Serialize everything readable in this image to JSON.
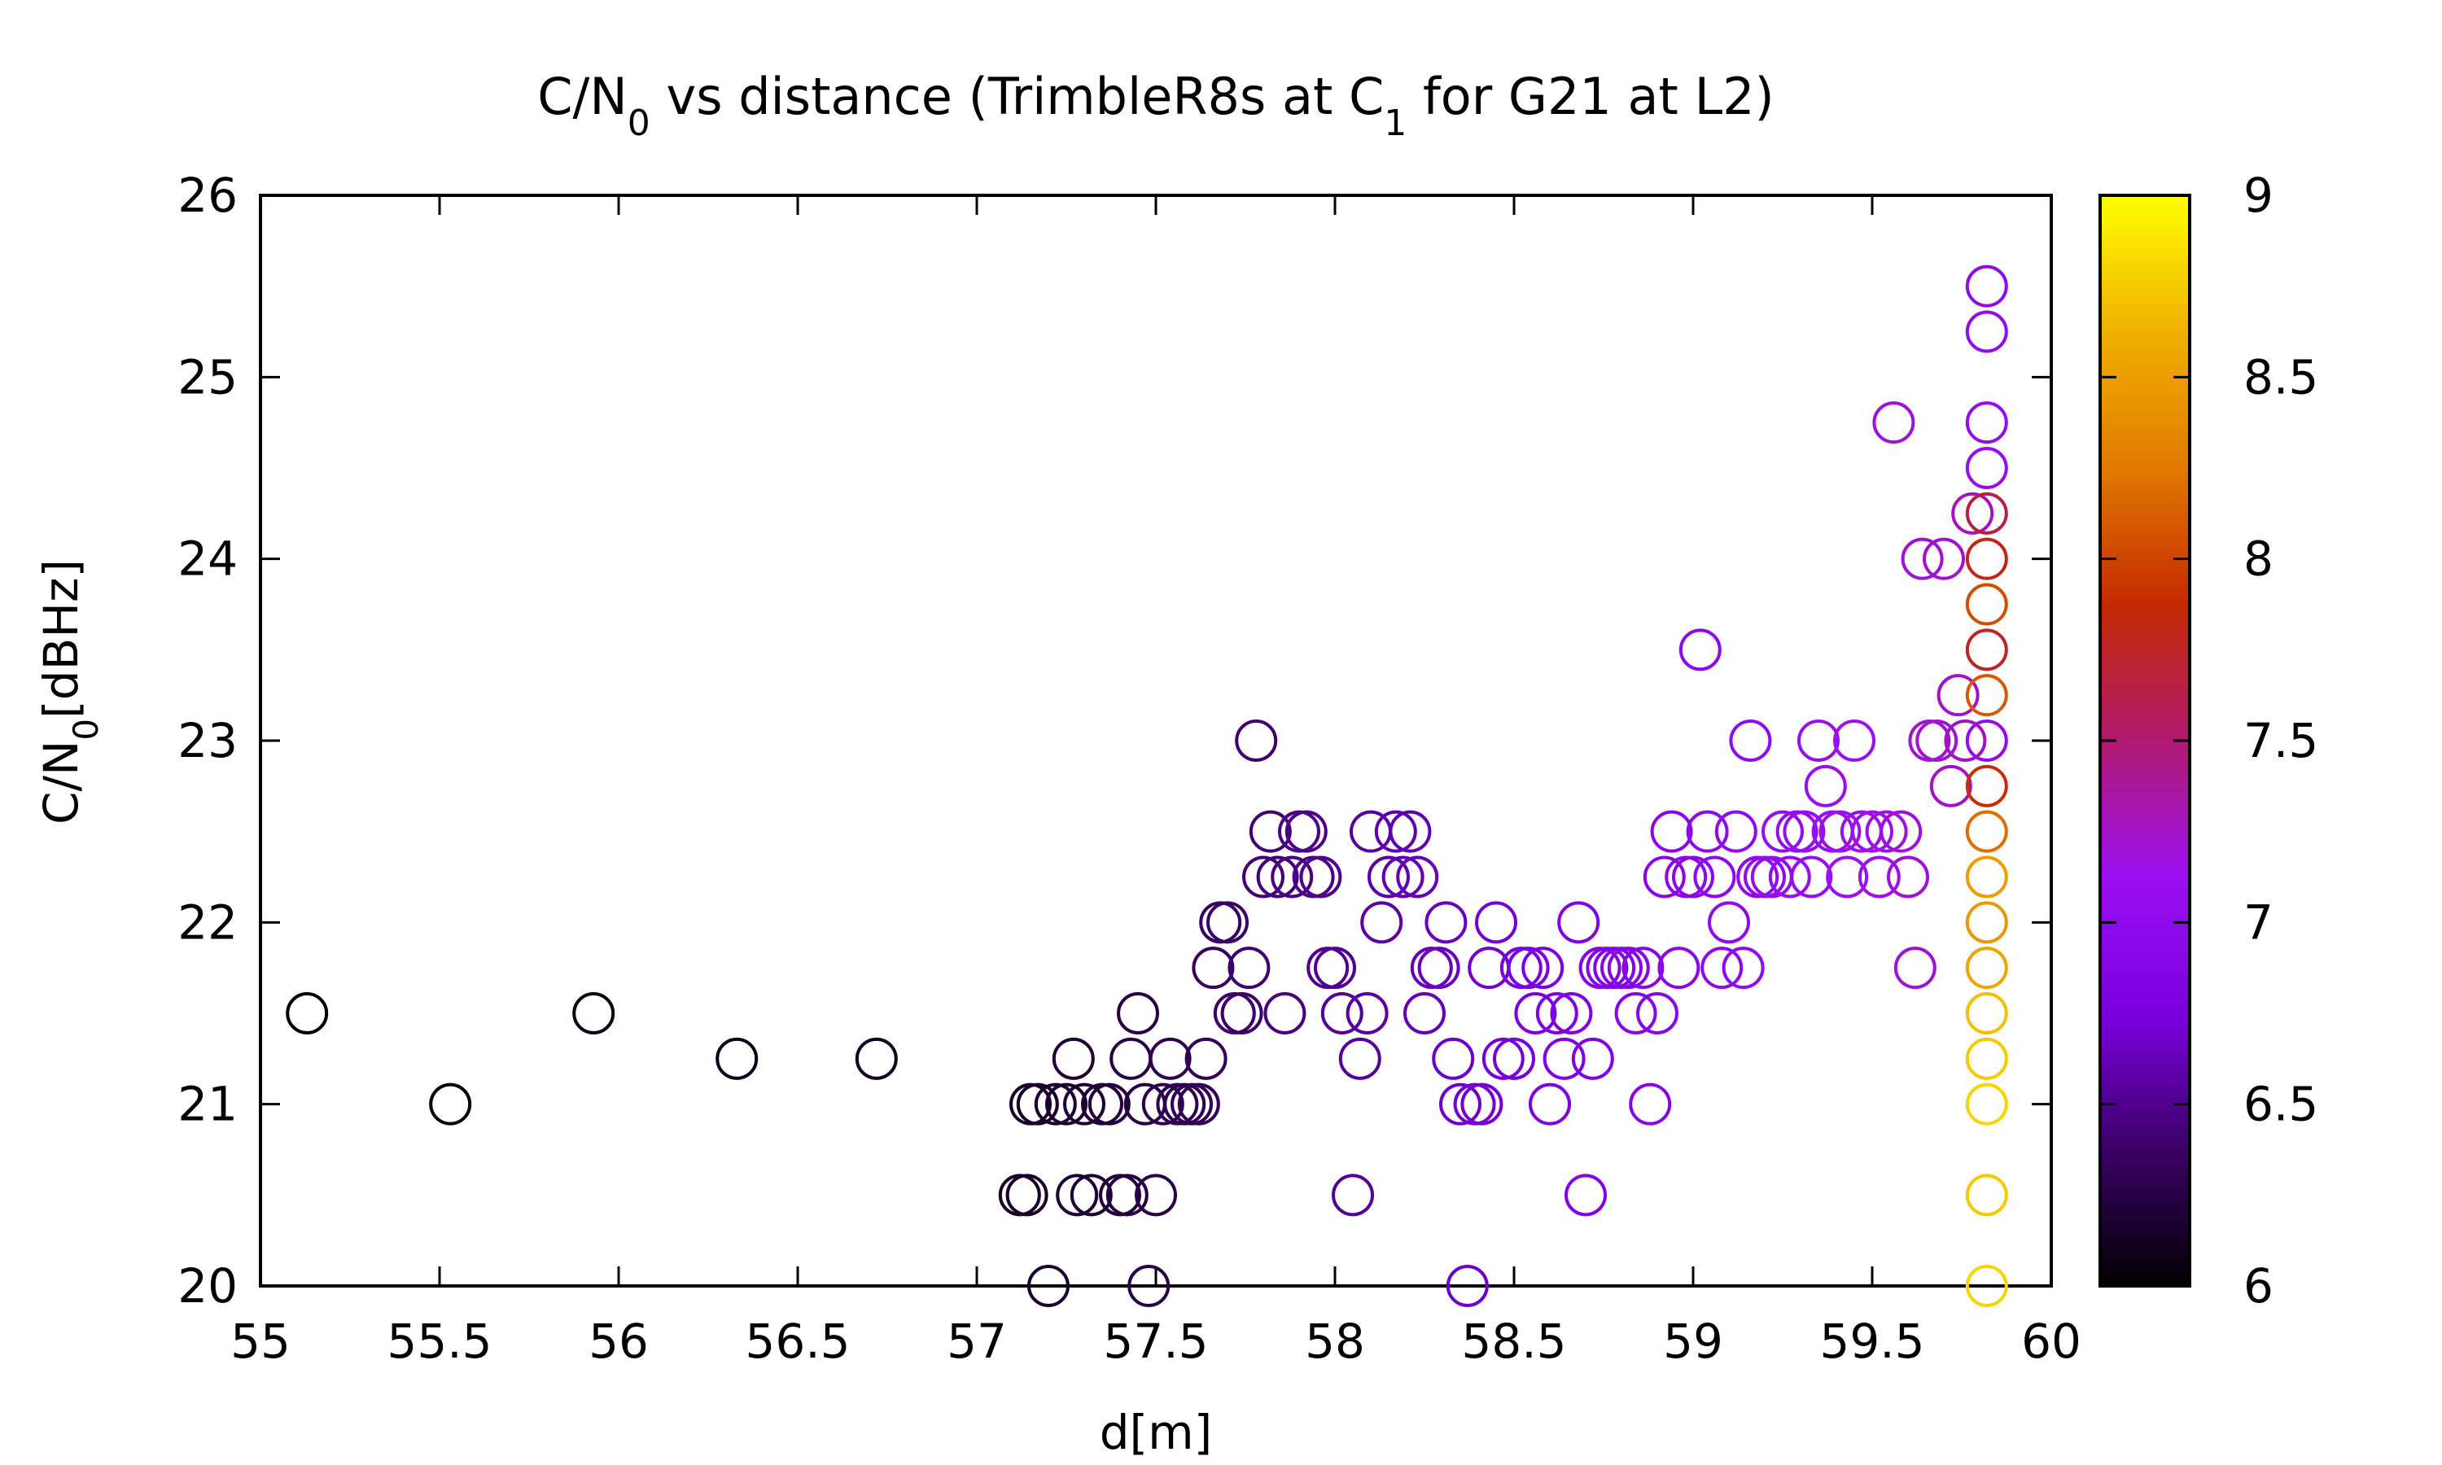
{
  "chart_data": {
    "type": "scatter",
    "title_parts": {
      "a": "C/N",
      "a_sub": "0",
      "b": " vs distance (TrimbleR8s at C",
      "b_sub": "1",
      "c": " for G21 at L2)"
    },
    "ylabel_parts": {
      "a": "C/N",
      "a_sub": "0",
      "b": "[dBHz]"
    },
    "xlabel": "d[m]",
    "xlim": [
      55,
      60
    ],
    "ylim": [
      20,
      26
    ],
    "xticks": [
      "55",
      "55.5",
      "56",
      "56.5",
      "57",
      "57.5",
      "58",
      "58.5",
      "59",
      "59.5",
      "60"
    ],
    "yticks": [
      "20",
      "21",
      "22",
      "23",
      "24",
      "25",
      "26"
    ],
    "colorbar": {
      "range": [
        6,
        9
      ],
      "ticks": [
        "6",
        "6.5",
        "7",
        "7.5",
        "8",
        "8.5",
        "9"
      ],
      "palette": [
        "#000000",
        "#3b0066",
        "#7a00e0",
        "#9a10f0",
        "#b01a70",
        "#c42a00",
        "#e07a00",
        "#f0b000",
        "#ffff00"
      ]
    },
    "grid": false,
    "marker": "open-circle",
    "points": [
      [
        55.13,
        21.5,
        6.0
      ],
      [
        55.53,
        21.0,
        6.05
      ],
      [
        55.93,
        21.5,
        6.08
      ],
      [
        56.33,
        21.25,
        6.1
      ],
      [
        56.72,
        21.25,
        6.12
      ],
      [
        57.12,
        20.5,
        6.15
      ],
      [
        57.14,
        20.5,
        6.15
      ],
      [
        57.15,
        21.0,
        6.15
      ],
      [
        57.17,
        21.0,
        6.15
      ],
      [
        57.2,
        20.0,
        6.17
      ],
      [
        57.22,
        21.0,
        6.17
      ],
      [
        57.25,
        21.0,
        6.18
      ],
      [
        57.27,
        21.25,
        6.2
      ],
      [
        57.28,
        20.5,
        6.2
      ],
      [
        57.3,
        21.0,
        6.2
      ],
      [
        57.32,
        20.5,
        6.2
      ],
      [
        57.35,
        21.0,
        6.22
      ],
      [
        57.37,
        21.0,
        6.22
      ],
      [
        57.4,
        20.5,
        6.22
      ],
      [
        57.42,
        20.5,
        6.23
      ],
      [
        57.43,
        21.25,
        6.25
      ],
      [
        57.45,
        21.5,
        6.25
      ],
      [
        57.47,
        21.0,
        6.25
      ],
      [
        57.48,
        20.0,
        6.27
      ],
      [
        57.5,
        20.5,
        6.27
      ],
      [
        57.52,
        21.0,
        6.28
      ],
      [
        57.54,
        21.25,
        6.3
      ],
      [
        57.56,
        21.0,
        6.3
      ],
      [
        57.58,
        21.0,
        6.3
      ],
      [
        57.6,
        21.0,
        6.32
      ],
      [
        57.62,
        21.0,
        6.32
      ],
      [
        57.64,
        21.25,
        6.33
      ],
      [
        57.66,
        21.75,
        6.35
      ],
      [
        57.68,
        22.0,
        6.35
      ],
      [
        57.7,
        22.0,
        6.37
      ],
      [
        57.72,
        21.5,
        6.38
      ],
      [
        57.74,
        21.5,
        6.38
      ],
      [
        57.76,
        21.75,
        6.4
      ],
      [
        57.78,
        23.0,
        6.4
      ],
      [
        57.8,
        22.25,
        6.42
      ],
      [
        57.82,
        22.5,
        6.42
      ],
      [
        57.84,
        22.25,
        6.43
      ],
      [
        57.86,
        21.5,
        6.45
      ],
      [
        57.88,
        22.25,
        6.45
      ],
      [
        57.9,
        22.5,
        6.47
      ],
      [
        57.92,
        22.5,
        6.47
      ],
      [
        57.94,
        22.25,
        6.48
      ],
      [
        57.96,
        22.25,
        6.5
      ],
      [
        57.98,
        21.75,
        6.5
      ],
      [
        58.0,
        21.75,
        6.5
      ],
      [
        58.02,
        21.5,
        6.52
      ],
      [
        58.05,
        20.5,
        6.52
      ],
      [
        58.07,
        21.25,
        6.53
      ],
      [
        58.09,
        21.5,
        6.55
      ],
      [
        58.1,
        22.5,
        6.55
      ],
      [
        58.13,
        22.0,
        6.57
      ],
      [
        58.15,
        22.25,
        6.57
      ],
      [
        58.17,
        22.5,
        6.58
      ],
      [
        58.19,
        22.25,
        6.6
      ],
      [
        58.21,
        22.5,
        6.6
      ],
      [
        58.23,
        22.25,
        6.62
      ],
      [
        58.25,
        21.5,
        6.62
      ],
      [
        58.27,
        21.75,
        6.63
      ],
      [
        58.29,
        21.75,
        6.65
      ],
      [
        58.31,
        22.0,
        6.65
      ],
      [
        58.33,
        21.25,
        6.67
      ],
      [
        58.35,
        21.0,
        6.67
      ],
      [
        58.37,
        20.0,
        6.68
      ],
      [
        58.39,
        21.0,
        6.7
      ],
      [
        58.41,
        21.0,
        6.7
      ],
      [
        58.43,
        21.75,
        6.7
      ],
      [
        58.45,
        22.0,
        6.72
      ],
      [
        58.47,
        21.25,
        6.72
      ],
      [
        58.5,
        21.25,
        6.73
      ],
      [
        58.52,
        21.75,
        6.75
      ],
      [
        58.54,
        21.75,
        6.75
      ],
      [
        58.56,
        21.5,
        6.77
      ],
      [
        58.58,
        21.75,
        6.77
      ],
      [
        58.6,
        21.0,
        6.78
      ],
      [
        58.62,
        21.5,
        6.8
      ],
      [
        58.64,
        21.25,
        6.8
      ],
      [
        58.66,
        21.5,
        6.8
      ],
      [
        58.68,
        22.0,
        6.82
      ],
      [
        58.7,
        20.5,
        6.82
      ],
      [
        58.72,
        21.25,
        6.83
      ],
      [
        58.74,
        21.75,
        6.85
      ],
      [
        58.76,
        21.75,
        6.85
      ],
      [
        58.78,
        21.75,
        6.86
      ],
      [
        58.8,
        21.75,
        6.87
      ],
      [
        58.82,
        21.75,
        6.88
      ],
      [
        58.84,
        21.5,
        6.88
      ],
      [
        58.86,
        21.75,
        6.9
      ],
      [
        58.88,
        21.0,
        6.9
      ],
      [
        58.9,
        21.5,
        6.9
      ],
      [
        58.92,
        22.25,
        6.92
      ],
      [
        58.94,
        22.5,
        6.92
      ],
      [
        58.96,
        21.75,
        6.93
      ],
      [
        58.98,
        22.25,
        6.95
      ],
      [
        59.0,
        22.25,
        6.95
      ],
      [
        59.02,
        23.5,
        6.96
      ],
      [
        59.04,
        22.5,
        6.97
      ],
      [
        59.06,
        22.25,
        6.98
      ],
      [
        59.08,
        21.75,
        6.98
      ],
      [
        59.1,
        22.0,
        7.0
      ],
      [
        59.12,
        22.5,
        7.0
      ],
      [
        59.14,
        21.75,
        7.0
      ],
      [
        59.16,
        23.0,
        7.02
      ],
      [
        59.18,
        22.25,
        7.02
      ],
      [
        59.2,
        22.25,
        7.03
      ],
      [
        59.22,
        22.25,
        7.05
      ],
      [
        59.25,
        22.5,
        7.05
      ],
      [
        59.27,
        22.25,
        7.06
      ],
      [
        59.29,
        22.5,
        7.07
      ],
      [
        59.31,
        22.5,
        7.08
      ],
      [
        59.33,
        22.25,
        7.08
      ],
      [
        59.35,
        23.0,
        7.1
      ],
      [
        59.37,
        22.75,
        7.1
      ],
      [
        59.39,
        22.5,
        7.1
      ],
      [
        59.41,
        22.5,
        7.12
      ],
      [
        59.43,
        22.25,
        7.12
      ],
      [
        59.45,
        23.0,
        7.13
      ],
      [
        59.47,
        22.5,
        7.15
      ],
      [
        59.5,
        22.5,
        7.15
      ],
      [
        59.52,
        22.25,
        7.16
      ],
      [
        59.54,
        22.5,
        7.17
      ],
      [
        59.56,
        24.75,
        7.18
      ],
      [
        59.58,
        22.5,
        7.18
      ],
      [
        59.6,
        22.25,
        7.2
      ],
      [
        59.62,
        21.75,
        7.2
      ],
      [
        59.64,
        24.0,
        7.2
      ],
      [
        59.66,
        23.0,
        7.22
      ],
      [
        59.68,
        23.0,
        7.22
      ],
      [
        59.7,
        24.0,
        7.23
      ],
      [
        59.72,
        22.75,
        7.25
      ],
      [
        59.74,
        23.25,
        7.25
      ],
      [
        59.76,
        23.0,
        7.27
      ],
      [
        59.78,
        24.25,
        7.28
      ],
      [
        59.82,
        25.5,
        7.0
      ],
      [
        59.82,
        25.25,
        7.02
      ],
      [
        59.82,
        24.75,
        7.05
      ],
      [
        59.82,
        24.5,
        7.08
      ],
      [
        59.82,
        24.25,
        7.65
      ],
      [
        59.82,
        24.0,
        7.8
      ],
      [
        59.82,
        23.75,
        8.05
      ],
      [
        59.82,
        23.5,
        7.75
      ],
      [
        59.82,
        23.25,
        8.1
      ],
      [
        59.82,
        23.0,
        7.05
      ],
      [
        59.82,
        22.75,
        7.9
      ],
      [
        59.82,
        22.5,
        8.2
      ],
      [
        59.82,
        22.25,
        8.5
      ],
      [
        59.82,
        22.0,
        8.45
      ],
      [
        59.82,
        21.75,
        8.55
      ],
      [
        59.82,
        21.5,
        8.7
      ],
      [
        59.82,
        21.25,
        8.75
      ],
      [
        59.82,
        21.0,
        8.8
      ],
      [
        59.82,
        20.5,
        8.75
      ],
      [
        59.82,
        20.0,
        8.8
      ]
    ]
  }
}
